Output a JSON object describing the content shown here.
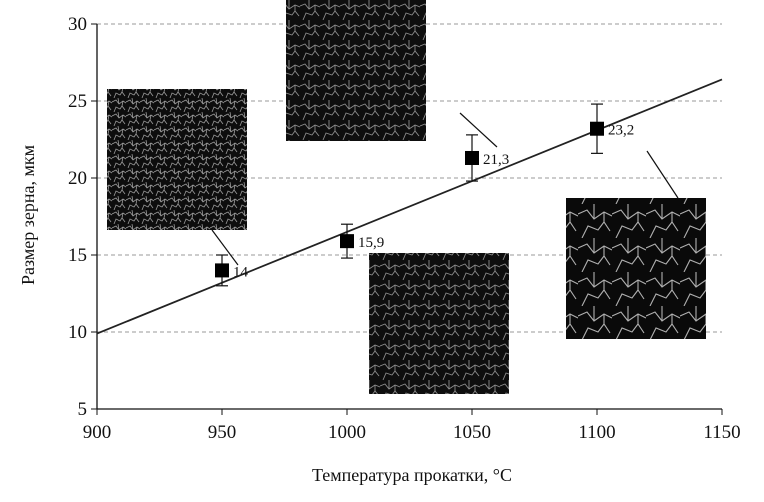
{
  "chart_data": {
    "type": "scatter",
    "xlabel": "Температура прокатки, °C",
    "ylabel": "Размер зерна, мкм",
    "xlim": [
      900,
      1150
    ],
    "ylim": [
      5,
      30
    ],
    "xticks": [
      "900",
      "950",
      "1000",
      "1050",
      "1100",
      "1150"
    ],
    "yticks": [
      "5",
      "10",
      "15",
      "20",
      "25",
      "30"
    ],
    "grid": "horizontal dashed",
    "series": [
      {
        "points": [
          {
            "x": 950,
            "y": 14,
            "err": 1.0,
            "label": "14"
          },
          {
            "x": 1000,
            "y": 15.9,
            "err": 1.1,
            "label": "15,9"
          },
          {
            "x": 1050,
            "y": 21.3,
            "err": 1.5,
            "label": "21,3"
          },
          {
            "x": 1100,
            "y": 23.2,
            "err": 1.6,
            "label": "23,2"
          }
        ]
      }
    ],
    "trendline": {
      "x": [
        900,
        1150
      ],
      "y": [
        9.9,
        26.4
      ]
    },
    "insets": [
      "micrograph",
      "micrograph",
      "micrograph",
      "micrograph"
    ]
  }
}
